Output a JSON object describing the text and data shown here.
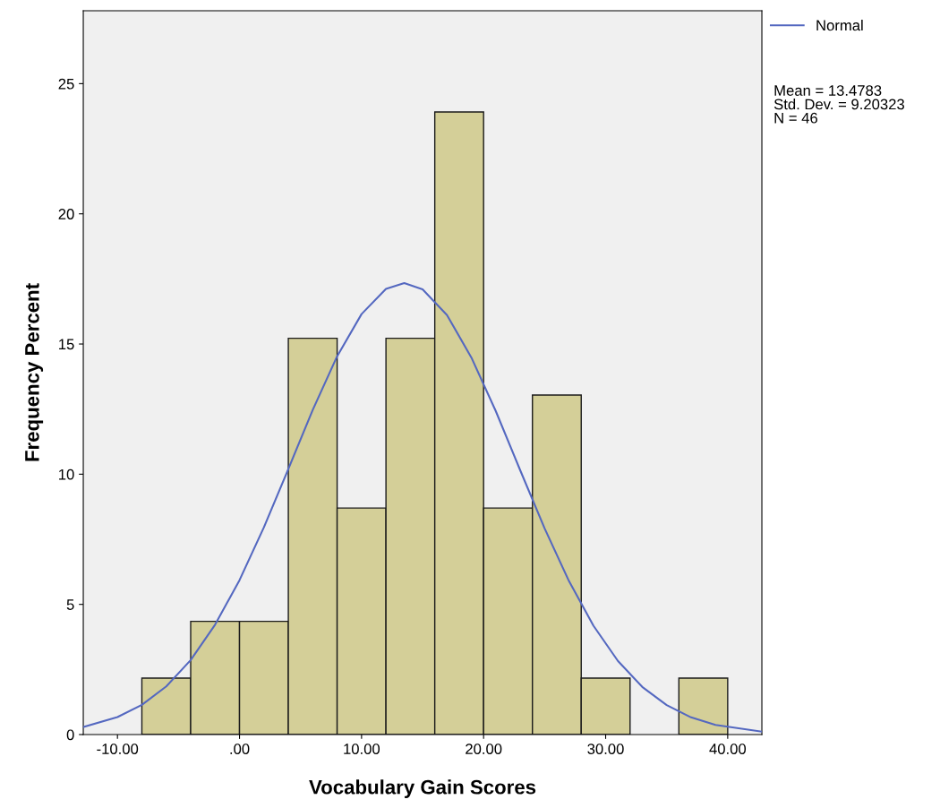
{
  "chart_data": {
    "type": "histogram",
    "xlabel": "Vocabulary Gain Scores",
    "ylabel": "Frequency Percent",
    "xlim": [
      -12.8,
      42.8
    ],
    "ylim": [
      0,
      27.8
    ],
    "xticks": [
      {
        "value": -10,
        "label": "-10.00"
      },
      {
        "value": 0,
        "label": ".00"
      },
      {
        "value": 10,
        "label": "10.00"
      },
      {
        "value": 20,
        "label": "20.00"
      },
      {
        "value": 30,
        "label": "30.00"
      },
      {
        "value": 40,
        "label": "40.00"
      }
    ],
    "yticks": [
      0,
      5,
      10,
      15,
      20,
      25
    ],
    "grid": false,
    "legend": "top right",
    "annotations": [
      "Mean = 13.4783",
      "Std. Dev. = 9.20323",
      "N = 46"
    ],
    "series": [
      {
        "color": "#d4cf98",
        "bins": [
          -8,
          -4,
          0,
          4,
          8,
          12,
          16,
          20,
          24,
          28,
          32,
          36,
          40
        ],
        "values": [
          2.17,
          4.35,
          4.35,
          15.22,
          8.7,
          15.22,
          23.91,
          8.7,
          13.04,
          2.17,
          0,
          2.17
        ]
      },
      {
        "type": "line",
        "name": "Normal",
        "color": "#5468c0",
        "x": [
          -12.8,
          -10,
          -8,
          -6,
          -4,
          -2,
          0,
          2,
          4,
          6,
          8,
          10,
          12,
          13.5,
          15,
          17,
          19,
          21,
          23,
          25,
          27,
          29,
          31,
          33,
          35,
          37,
          39,
          42.8
        ],
        "values": [
          0.29,
          0.67,
          1.14,
          1.85,
          2.86,
          4.22,
          5.93,
          7.96,
          10.2,
          12.47,
          14.53,
          16.15,
          17.12,
          17.34,
          17.1,
          16.11,
          14.48,
          12.42,
          10.15,
          7.92,
          5.89,
          4.18,
          2.83,
          1.83,
          1.13,
          0.66,
          0.37,
          0.11
        ]
      }
    ]
  }
}
